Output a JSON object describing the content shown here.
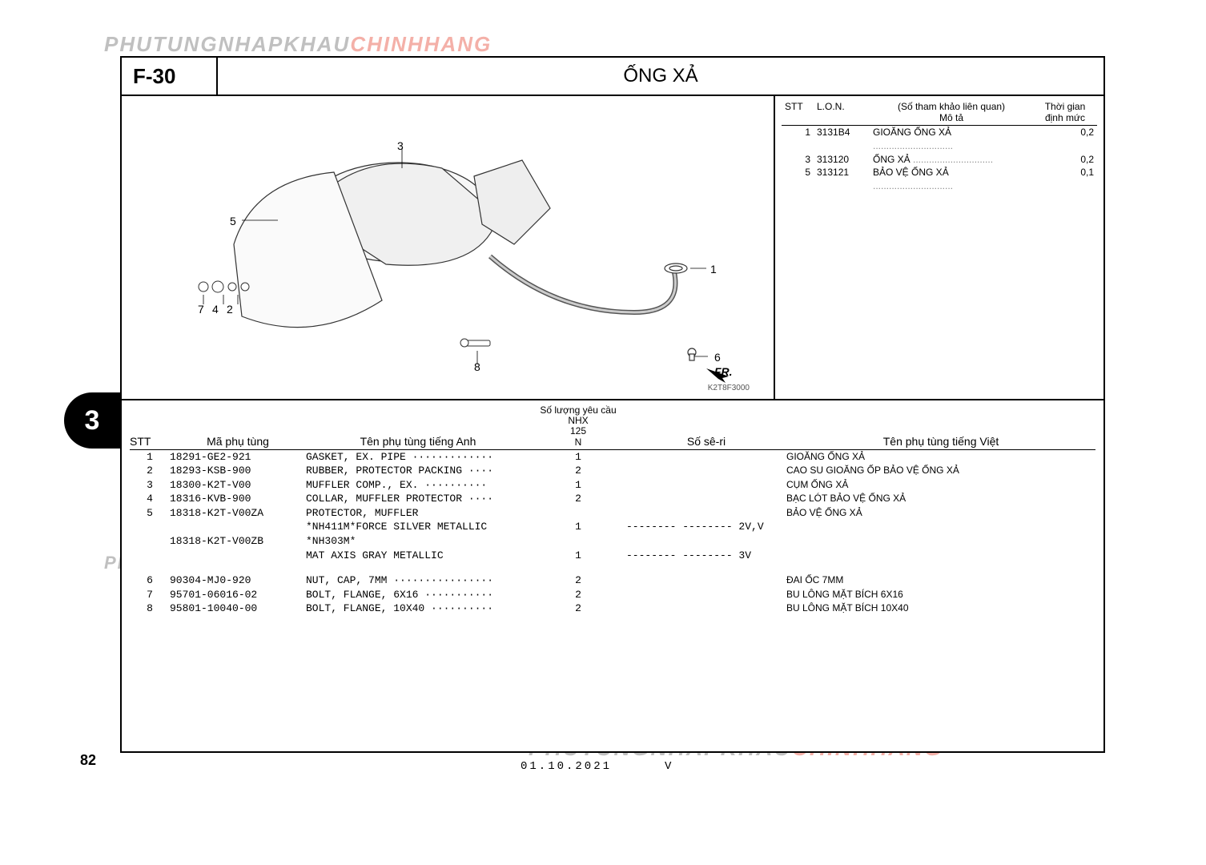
{
  "section_code": "F-30",
  "section_title": "ỐNG XẢ",
  "watermark_gray": "PHUTUNGNHAPKHAU",
  "watermark_red": "CHINHHANG",
  "side_tab": "3",
  "page_number": "82",
  "footer_date": "01.10.2021",
  "footer_mark": "V",
  "diagram_code": "K2T8F3000",
  "fr_label": "FR.",
  "ref_header": {
    "stt": "STT",
    "lon": "L.O.N.",
    "desc_top": "(Số tham khảo liên quan)",
    "desc_bot": "Mô tả",
    "time_top": "Thời gian",
    "time_bot": "định mức"
  },
  "ref_rows": [
    {
      "stt": "1",
      "lon": "3131B4",
      "desc": "GIOĂNG ỐNG XẢ",
      "time": "0,2"
    },
    {
      "stt": "3",
      "lon": "313120",
      "desc": "ỐNG XẢ",
      "time": "0,2"
    },
    {
      "stt": "5",
      "lon": "313121",
      "desc": "BẢO VỆ ỐNG XẢ",
      "time": "0,1"
    }
  ],
  "parts_header": {
    "stt": "STT",
    "code": "Mã phụ tùng",
    "name_en": "Tên phụ tùng tiếng Anh",
    "qty_top": "Số lượng yêu cầu",
    "qty_l1": "NHX",
    "qty_l2": "125",
    "qty_l3": "N",
    "serial": "Số sê-ri",
    "name_vn": "Tên phụ tùng tiếng Việt"
  },
  "parts": [
    {
      "stt": "1",
      "code": "18291-GE2-921",
      "en": "GASKET, EX. PIPE ·············",
      "qty": "1",
      "serial": "",
      "vn": "GIOĂNG ỐNG XẢ"
    },
    {
      "stt": "2",
      "code": "18293-KSB-900",
      "en": "RUBBER, PROTECTOR PACKING ····",
      "qty": "2",
      "serial": "",
      "vn": "CAO SU GIOĂNG ỐP BẢO VỆ ỐNG XẢ"
    },
    {
      "stt": "3",
      "code": "18300-K2T-V00",
      "en": "MUFFLER COMP., EX. ··········",
      "qty": "1",
      "serial": "",
      "vn": "CỤM ỐNG XẢ"
    },
    {
      "stt": "4",
      "code": "18316-KVB-900",
      "en": "COLLAR, MUFFLER PROTECTOR ····",
      "qty": "2",
      "serial": "",
      "vn": "BẠC LÓT BẢO VỆ ỐNG XẢ"
    },
    {
      "stt": "5",
      "code": "18318-K2T-V00ZA",
      "en": "PROTECTOR, MUFFLER",
      "qty": "",
      "serial": "",
      "vn": "BẢO VỆ ỐNG XẢ"
    },
    {
      "stt": "",
      "code": "",
      "en": "*NH411M*FORCE SILVER METALLIC",
      "qty": "1",
      "serial": "-------- -------- 2V,V",
      "vn": ""
    },
    {
      "stt": "",
      "code": "18318-K2T-V00ZB",
      "en": "*NH303M*",
      "qty": "",
      "serial": "",
      "vn": ""
    },
    {
      "stt": "",
      "code": "",
      "en": "MAT AXIS GRAY METALLIC",
      "qty": "1",
      "serial": "-------- -------- 3V",
      "vn": ""
    }
  ],
  "parts2": [
    {
      "stt": "6",
      "code": "90304-MJ0-920",
      "en": "NUT, CAP, 7MM ················",
      "qty": "2",
      "serial": "",
      "vn": "ĐAI ỐC 7MM"
    },
    {
      "stt": "7",
      "code": "95701-06016-02",
      "en": "BOLT, FLANGE, 6X16 ···········",
      "qty": "2",
      "serial": "",
      "vn": "BU LÔNG MẶT BÍCH 6X16"
    },
    {
      "stt": "8",
      "code": "95801-10040-00",
      "en": "BOLT, FLANGE, 10X40 ··········",
      "qty": "2",
      "serial": "",
      "vn": "BU LÔNG MẶT BÍCH 10X40"
    }
  ],
  "callouts": {
    "c1": "1",
    "c2": "2",
    "c3": "3",
    "c4": "4",
    "c5": "5",
    "c6": "6",
    "c7": "7",
    "c8": "8"
  },
  "colors": {
    "border": "#000000",
    "wm_gray": "#c0c0c0",
    "wm_red": "#f4b0a8",
    "bg": "#ffffff"
  }
}
